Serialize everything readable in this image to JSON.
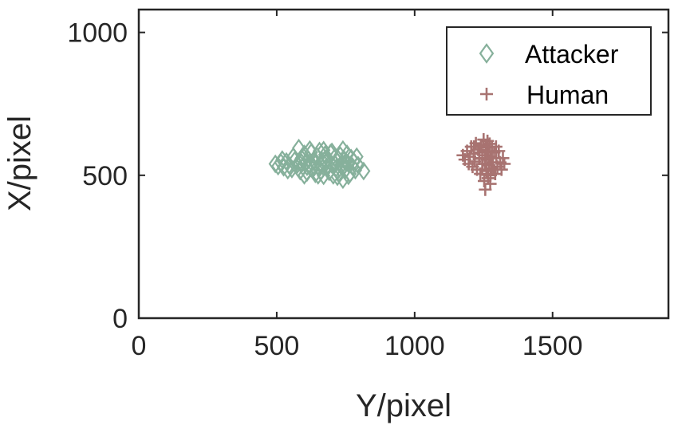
{
  "chart_data": {
    "type": "scatter",
    "title": "",
    "xlabel": "Y/pixel",
    "ylabel": "X/pixel",
    "xlim": [
      0,
      1920
    ],
    "ylim": [
      0,
      1080
    ],
    "xticks": [
      0,
      500,
      1000,
      1500
    ],
    "yticks": [
      0,
      500,
      1000
    ],
    "xtick_labels": [
      "0",
      "500",
      "1000",
      "1500"
    ],
    "ytick_labels": [
      "0",
      "500",
      "1000"
    ],
    "grid": false,
    "legend_position": "top-right",
    "series": [
      {
        "name": "Attacker",
        "marker": "diamond-open",
        "color": "#86b09b",
        "points": [
          [
            495,
            540
          ],
          [
            505,
            532
          ],
          [
            515,
            545
          ],
          [
            525,
            528
          ],
          [
            535,
            548
          ],
          [
            545,
            535
          ],
          [
            555,
            522
          ],
          [
            565,
            552
          ],
          [
            575,
            538
          ],
          [
            580,
            595
          ],
          [
            585,
            515
          ],
          [
            590,
            560
          ],
          [
            595,
            530
          ],
          [
            600,
            575
          ],
          [
            605,
            545
          ],
          [
            610,
            510
          ],
          [
            615,
            555
          ],
          [
            620,
            535
          ],
          [
            625,
            580
          ],
          [
            630,
            520
          ],
          [
            635,
            548
          ],
          [
            640,
            505
          ],
          [
            645,
            568
          ],
          [
            650,
            532
          ],
          [
            655,
            585
          ],
          [
            660,
            515
          ],
          [
            665,
            550
          ],
          [
            670,
            498
          ],
          [
            675,
            572
          ],
          [
            680,
            530
          ],
          [
            685,
            555
          ],
          [
            690,
            512
          ],
          [
            695,
            578
          ],
          [
            700,
            538
          ],
          [
            705,
            500
          ],
          [
            710,
            562
          ],
          [
            715,
            525
          ],
          [
            720,
            548
          ],
          [
            725,
            508
          ],
          [
            730,
            570
          ],
          [
            735,
            535
          ],
          [
            740,
            485
          ],
          [
            745,
            555
          ],
          [
            750,
            520
          ],
          [
            755,
            575
          ],
          [
            760,
            540
          ],
          [
            765,
            505
          ],
          [
            770,
            560
          ],
          [
            775,
            530
          ],
          [
            780,
            548
          ],
          [
            785,
            518
          ],
          [
            790,
            565
          ],
          [
            795,
            535
          ],
          [
            815,
            515
          ],
          [
            520,
            555
          ],
          [
            540,
            518
          ],
          [
            560,
            565
          ],
          [
            600,
            500
          ],
          [
            620,
            590
          ],
          [
            650,
            500
          ],
          [
            670,
            588
          ],
          [
            700,
            582
          ],
          [
            720,
            495
          ],
          [
            740,
            590
          ],
          [
            760,
            498
          ],
          [
            680,
            545
          ],
          [
            640,
            540
          ],
          [
            610,
            530
          ],
          [
            710,
            542
          ],
          [
            750,
            545
          ],
          [
            590,
            545
          ],
          [
            660,
            535
          ]
        ]
      },
      {
        "name": "Human",
        "marker": "plus",
        "color": "#a87371",
        "points": [
          [
            1175,
            570
          ],
          [
            1182,
            555
          ],
          [
            1190,
            585
          ],
          [
            1196,
            540
          ],
          [
            1200,
            565
          ],
          [
            1205,
            600
          ],
          [
            1210,
            530
          ],
          [
            1214,
            575
          ],
          [
            1218,
            548
          ],
          [
            1222,
            612
          ],
          [
            1226,
            520
          ],
          [
            1230,
            590
          ],
          [
            1234,
            558
          ],
          [
            1238,
            505
          ],
          [
            1242,
            605
          ],
          [
            1246,
            540
          ],
          [
            1250,
            625
          ],
          [
            1252,
            480
          ],
          [
            1254,
            570
          ],
          [
            1256,
            450
          ],
          [
            1258,
            598
          ],
          [
            1260,
            515
          ],
          [
            1262,
            555
          ],
          [
            1264,
            620
          ],
          [
            1266,
            490
          ],
          [
            1268,
            585
          ],
          [
            1270,
            535
          ],
          [
            1272,
            610
          ],
          [
            1274,
            470
          ],
          [
            1276,
            565
          ],
          [
            1278,
            525
          ],
          [
            1280,
            600
          ],
          [
            1284,
            545
          ],
          [
            1288,
            580
          ],
          [
            1292,
            505
          ],
          [
            1296,
            560
          ],
          [
            1300,
            530
          ],
          [
            1305,
            585
          ],
          [
            1310,
            545
          ],
          [
            1315,
            520
          ],
          [
            1320,
            560
          ],
          [
            1325,
            540
          ],
          [
            1215,
            600
          ],
          [
            1235,
            580
          ],
          [
            1245,
            520
          ],
          [
            1255,
            540
          ],
          [
            1265,
            600
          ],
          [
            1275,
            500
          ],
          [
            1285,
            520
          ],
          [
            1295,
            600
          ],
          [
            1245,
            560
          ],
          [
            1260,
            580
          ],
          [
            1240,
            600
          ],
          [
            1280,
            560
          ]
        ]
      }
    ]
  }
}
